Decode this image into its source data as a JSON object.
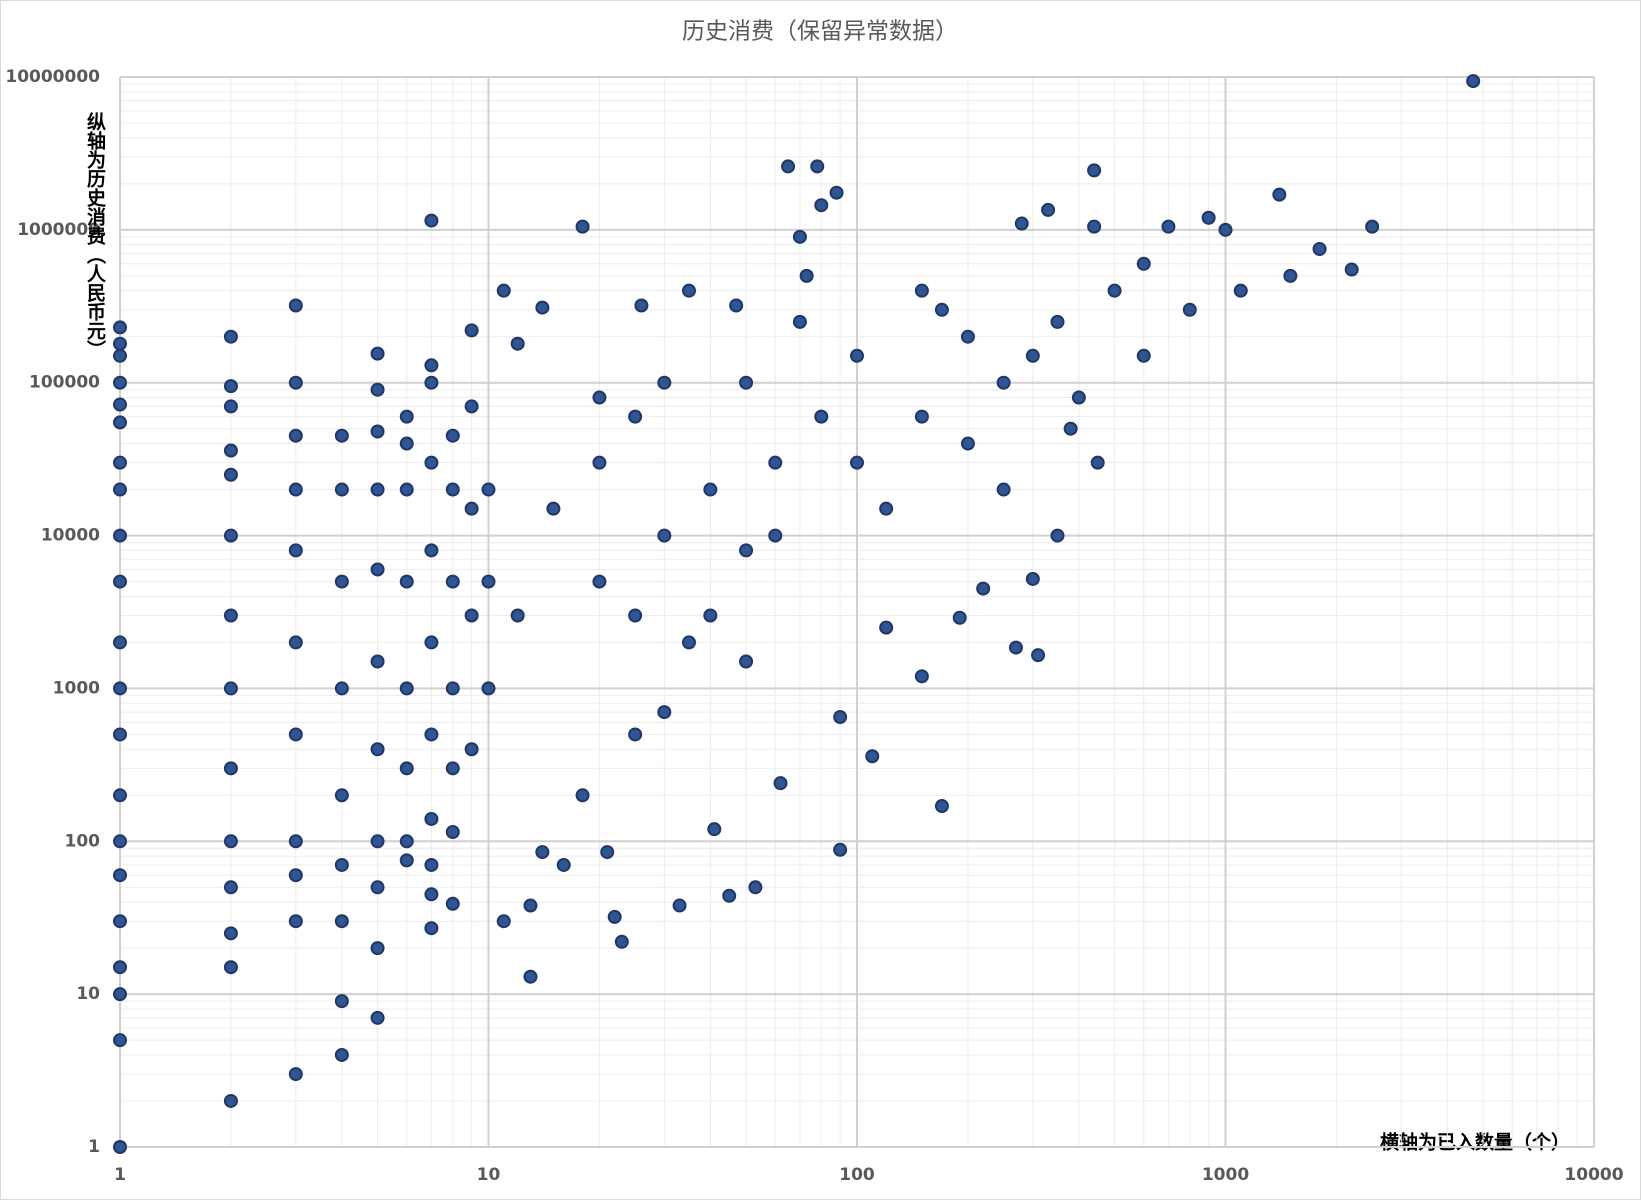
{
  "chart_data": {
    "type": "scatter",
    "title": "历史消费（保留异常数据）",
    "x_label": "横轴为已入数量（个）",
    "y_label": "纵轴为历史消费（人民币元）",
    "log_x": true,
    "log_y": true,
    "grid": true,
    "minor_grid": true,
    "color": "#2f5597",
    "xlim": [
      1,
      10000
    ],
    "xticks": [
      1,
      10,
      100,
      1000,
      10000
    ],
    "ylim": [
      1,
      10000000
    ],
    "yticks": [
      1,
      10,
      100,
      1000,
      10000,
      100000,
      1000000,
      10000000
    ],
    "x": [
      1,
      1,
      1,
      1,
      1,
      1,
      1,
      1,
      1,
      1,
      1,
      1,
      1,
      1,
      1,
      1,
      1,
      1,
      1,
      1,
      1,
      2,
      2,
      2,
      2,
      2,
      2,
      2,
      2,
      2,
      2,
      2,
      2,
      2,
      2,
      3,
      3,
      3,
      3,
      3,
      3,
      3,
      3,
      3,
      3,
      3,
      4,
      4,
      4,
      4,
      4,
      4,
      4,
      4,
      4,
      5,
      5,
      5,
      5,
      5,
      5,
      5,
      5,
      5,
      5,
      5,
      6,
      6,
      6,
      6,
      6,
      6,
      6,
      6,
      7,
      7,
      7,
      7,
      7,
      7,
      7,
      7,
      7,
      7,
      7,
      8,
      8,
      8,
      8,
      8,
      8,
      8,
      9,
      9,
      9,
      9,
      9,
      10,
      10,
      10,
      11,
      11,
      12,
      13,
      13,
      14,
      14,
      16,
      18,
      20,
      20,
      21,
      22,
      23,
      25,
      25,
      26,
      30,
      30,
      33,
      35,
      35,
      40,
      41,
      45,
      47,
      50,
      50,
      53,
      60,
      62,
      65,
      70,
      73,
      78,
      80,
      88,
      90,
      90,
      100,
      100,
      110,
      120,
      150,
      150,
      170,
      170,
      190,
      220,
      250,
      270,
      280,
      300,
      310,
      330,
      350,
      380,
      440,
      440,
      500,
      600,
      700,
      800,
      900,
      1000,
      1100,
      1400,
      1500,
      1800,
      2200,
      2500,
      4700,
      15,
      20,
      40,
      60,
      80,
      120,
      200,
      300,
      400,
      200,
      12,
      25,
      50,
      70,
      150,
      250,
      350,
      450,
      600,
      30,
      18
    ],
    "values": [
      1,
      5,
      10,
      15,
      30,
      60,
      100,
      200,
      500,
      1000,
      2000,
      5000,
      10000,
      20000,
      30000,
      55000,
      72000,
      100000,
      150000,
      180000,
      230000,
      2,
      15,
      25,
      50,
      100,
      300,
      1000,
      3000,
      10000,
      25000,
      36000,
      70000,
      95000,
      200000,
      3,
      30,
      60,
      100,
      500,
      2000,
      8000,
      20000,
      45000,
      100000,
      320000,
      4,
      9,
      30,
      70,
      200,
      1000,
      5000,
      20000,
      45000,
      7,
      20,
      50,
      100,
      400,
      1500,
      6000,
      20000,
      48000,
      90000,
      155000,
      75,
      100,
      300,
      1000,
      5000,
      20000,
      40000,
      60000,
      27,
      45,
      70,
      140,
      500,
      2000,
      8000,
      30000,
      100000,
      130000,
      1150000,
      39,
      115,
      300,
      1000,
      5000,
      20000,
      45000,
      220000,
      70000,
      400,
      3000,
      15000,
      1000,
      5000,
      20000,
      30,
      400000,
      180000,
      13,
      38,
      85,
      310000,
      70,
      1050000,
      5000,
      30000,
      85,
      32,
      22,
      3000,
      60000,
      320000,
      10000,
      100000,
      38,
      400000,
      2000,
      20000,
      120,
      44,
      320000,
      8000,
      100000,
      50,
      30000,
      240,
      2600000,
      900000,
      500000,
      2600000,
      1450000,
      1750000,
      88,
      650,
      30000,
      150000,
      360,
      2500,
      1200,
      60000,
      170,
      300000,
      2900,
      4500,
      100000,
      1850,
      1100000,
      5200,
      1650,
      1350000,
      250000,
      50000,
      2450000,
      1050000,
      400000,
      600000,
      1050000,
      300000,
      1200000,
      1000000,
      400000,
      1700000,
      500000,
      750000,
      550000,
      1050000,
      9400000,
      15000,
      80000,
      3000,
      10000,
      60000,
      15000,
      40000,
      150000,
      80000,
      200000,
      3000,
      500,
      1500,
      250000,
      400000,
      20000,
      10000,
      30000,
      150000,
      700,
      200
    ]
  }
}
